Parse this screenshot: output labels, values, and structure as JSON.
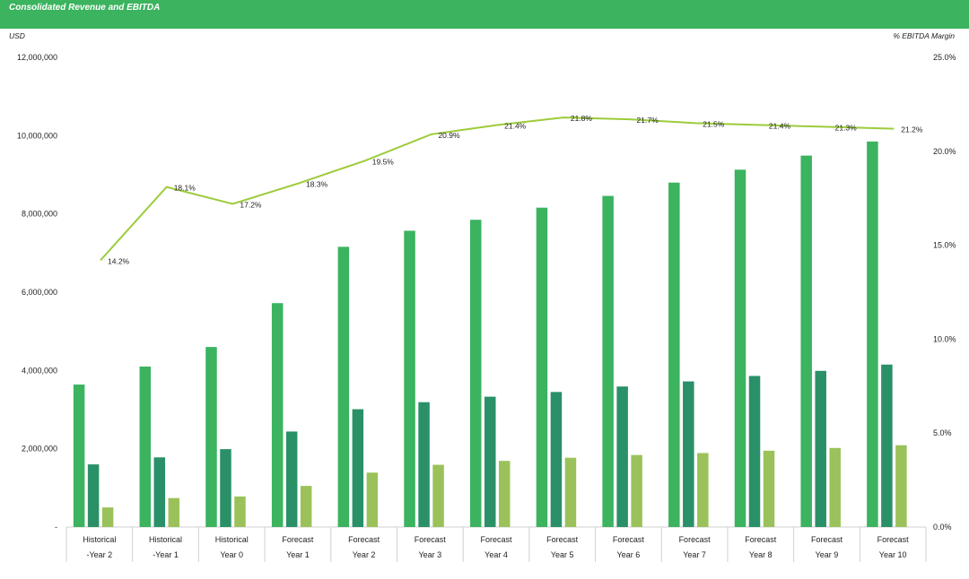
{
  "header": {
    "title": "Consolidated Revenue and EBITDA"
  },
  "axes": {
    "left_unit": "USD",
    "right_unit": "% EBITDA Margin"
  },
  "colors": {
    "header": "#3bb35f",
    "bar1": "#3bb35f",
    "bar2": "#2a9068",
    "bar3": "#9bc25a",
    "line": "#9ccb3a"
  },
  "chart_data": {
    "type": "bar",
    "categories": [
      [
        "Historical",
        "-Year 2"
      ],
      [
        "Historical",
        "-Year 1"
      ],
      [
        "Historical",
        "Year 0"
      ],
      [
        "Forecast",
        "Year 1"
      ],
      [
        "Forecast",
        "Year 2"
      ],
      [
        "Forecast",
        "Year 3"
      ],
      [
        "Forecast",
        "Year 4"
      ],
      [
        "Forecast",
        "Year 5"
      ],
      [
        "Forecast",
        "Year 6"
      ],
      [
        "Forecast",
        "Year 7"
      ],
      [
        "Forecast",
        "Year 8"
      ],
      [
        "Forecast",
        "Year 9"
      ],
      [
        "Forecast",
        "Year 10"
      ]
    ],
    "series": [
      {
        "type": "bar",
        "axis": "left",
        "values": [
          3640000,
          4100000,
          4600000,
          5720000,
          7160000,
          7570000,
          7850000,
          8160000,
          8460000,
          8800000,
          9130000,
          9490000,
          9850000
        ]
      },
      {
        "type": "bar",
        "axis": "left",
        "values": [
          1600000,
          1780000,
          1990000,
          2440000,
          3010000,
          3190000,
          3330000,
          3450000,
          3590000,
          3720000,
          3860000,
          3990000,
          4150000
        ]
      },
      {
        "type": "bar",
        "axis": "left",
        "values": [
          500000,
          740000,
          780000,
          1050000,
          1390000,
          1590000,
          1690000,
          1770000,
          1840000,
          1890000,
          1950000,
          2020000,
          2090000
        ]
      },
      {
        "type": "line",
        "axis": "right",
        "values": [
          14.2,
          18.1,
          17.2,
          18.3,
          19.5,
          20.9,
          21.4,
          21.8,
          21.7,
          21.5,
          21.4,
          21.3,
          21.2
        ],
        "labels": [
          "14.2%",
          "18.1%",
          "17.2%",
          "18.3%",
          "19.5%",
          "20.9%",
          "21.4%",
          "21.8%",
          "21.7%",
          "21.5%",
          "21.4%",
          "21.3%",
          "21.2%"
        ]
      }
    ],
    "y_left": {
      "range": [
        0,
        12000000
      ],
      "ticks": [
        "-",
        "2,000,000",
        "4,000,000",
        "6,000,000",
        "8,000,000",
        "10,000,000",
        "12,000,000"
      ]
    },
    "y_right": {
      "range": [
        0,
        25
      ],
      "ticks": [
        "0.0%",
        "5.0%",
        "10.0%",
        "15.0%",
        "20.0%",
        "25.0%"
      ]
    },
    "grid": false,
    "legend": "none"
  }
}
